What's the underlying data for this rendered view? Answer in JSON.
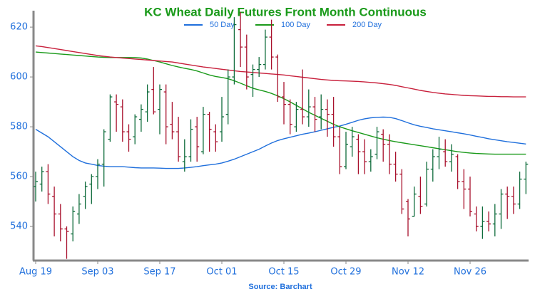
{
  "chart_data": {
    "type": "ohlc",
    "title": "KC Wheat Daily Futures Front Month Continuous",
    "source": "Source: Barchart",
    "categories": [
      "Aug 19",
      null,
      null,
      null,
      null,
      null,
      null,
      null,
      null,
      null,
      "Sep 03",
      null,
      null,
      null,
      null,
      null,
      null,
      null,
      null,
      null,
      "Sep 17",
      null,
      null,
      null,
      null,
      null,
      null,
      null,
      null,
      null,
      "Oct 01",
      null,
      null,
      null,
      null,
      null,
      null,
      null,
      null,
      null,
      "Oct 15",
      null,
      null,
      null,
      null,
      null,
      null,
      null,
      null,
      null,
      "Oct 29",
      null,
      null,
      null,
      null,
      null,
      null,
      null,
      null,
      null,
      "Nov 12",
      null,
      null,
      null,
      null,
      null,
      null,
      null,
      null,
      null,
      "Nov 26",
      null,
      null,
      null,
      null,
      null,
      null,
      null,
      null,
      null
    ],
    "open": [
      556,
      557,
      562,
      552,
      545,
      539,
      537,
      545,
      552,
      557,
      560,
      565,
      575,
      590,
      588,
      578,
      576,
      583,
      586,
      595,
      587,
      594,
      581,
      578,
      566,
      568,
      580,
      570,
      585,
      578,
      578,
      585,
      600,
      619,
      612,
      601,
      603,
      605,
      616,
      608,
      592,
      589,
      580,
      587,
      584,
      588,
      584,
      587,
      585,
      576,
      564,
      572,
      575,
      570,
      566,
      569,
      577,
      573,
      565,
      561,
      550,
      544,
      552,
      549,
      563,
      568,
      570,
      566,
      568,
      558,
      555,
      545,
      540,
      542,
      541,
      545,
      553,
      552,
      549,
      559
    ],
    "high": [
      562,
      564,
      565,
      556,
      549,
      540,
      548,
      553,
      558,
      561,
      567,
      579,
      593,
      593,
      591,
      581,
      585,
      589,
      597,
      604,
      597,
      597,
      590,
      584,
      575,
      583,
      584,
      588,
      586,
      581,
      592,
      603,
      624,
      626,
      617,
      605,
      608,
      619,
      623,
      609,
      598,
      591,
      590,
      603,
      595,
      592,
      593,
      591,
      592,
      580,
      578,
      580,
      577,
      575,
      571,
      580,
      579,
      577,
      570,
      563,
      551,
      556,
      560,
      566,
      571,
      576,
      575,
      573,
      569,
      563,
      560,
      548,
      548,
      546,
      549,
      555,
      556,
      556,
      562,
      566
    ],
    "low": [
      550,
      554,
      549,
      536,
      534,
      527,
      534,
      541,
      547,
      549,
      555,
      556,
      574,
      578,
      574,
      570,
      573,
      578,
      582,
      585,
      577,
      573,
      575,
      566,
      562,
      566,
      566,
      569,
      570,
      570,
      574,
      581,
      597,
      604,
      595,
      592,
      600,
      603,
      603,
      590,
      581,
      577,
      578,
      581,
      580,
      578,
      579,
      576,
      572,
      561,
      563,
      568,
      561,
      561,
      562,
      567,
      566,
      561,
      558,
      545,
      536,
      544,
      545,
      548,
      558,
      563,
      564,
      562,
      555,
      547,
      544,
      538,
      535,
      538,
      536,
      539,
      543,
      545,
      547,
      553
    ],
    "close": [
      558,
      562,
      553,
      545,
      539,
      538,
      546,
      549,
      556,
      560,
      565,
      578,
      592,
      589,
      578,
      575,
      584,
      587,
      594,
      586,
      595,
      580,
      578,
      568,
      568,
      579,
      572,
      585,
      579,
      574,
      584,
      600,
      621,
      612,
      600,
      603,
      605,
      616,
      608,
      592,
      589,
      581,
      587,
      584,
      588,
      583,
      587,
      585,
      576,
      564,
      573,
      576,
      570,
      566,
      568,
      578,
      573,
      565,
      561,
      547,
      543,
      553,
      548,
      563,
      568,
      571,
      566,
      569,
      558,
      555,
      546,
      540,
      542,
      541,
      545,
      553,
      552,
      549,
      559,
      565
    ],
    "up_color": "#0d6b3a",
    "down_color": "#a8102c",
    "series": [
      {
        "name": "50 Day",
        "color": "#1f6fdc",
        "values": [
          579,
          577.5,
          576,
          574,
          572,
          570,
          568,
          566.5,
          565.5,
          565,
          564.5,
          564.2,
          564,
          564,
          564,
          563.8,
          563.6,
          563.5,
          563.5,
          563.5,
          563.4,
          563.3,
          563.3,
          563.3,
          563.5,
          563.7,
          564,
          564.4,
          564.7,
          565,
          565.5,
          566.2,
          567,
          568,
          569,
          570,
          571,
          572.3,
          573.5,
          574.5,
          575.2,
          575.8,
          576.4,
          577,
          577.5,
          578,
          578.6,
          579.2,
          579.8,
          580.3,
          581,
          581.8,
          582.6,
          583.2,
          583.6,
          583.8,
          583.9,
          583.8,
          583.3,
          582.5,
          581.6,
          580.8,
          580.2,
          579.7,
          579.2,
          578.8,
          578.4,
          578,
          577.6,
          577.2,
          576.7,
          576.2,
          575.7,
          575.2,
          574.8,
          574.4,
          574,
          573.7,
          573.4,
          573.1
        ]
      },
      {
        "name": "100 Day",
        "color": "#1a9a1a",
        "values": [
          610,
          609.8,
          609.6,
          609.4,
          609.2,
          609,
          608.8,
          608.6,
          608.4,
          608.2,
          608,
          607.9,
          607.8,
          607.8,
          607.8,
          607.8,
          607.8,
          607.6,
          607.2,
          606.6,
          606,
          605.3,
          604.6,
          604,
          603.5,
          603,
          602.4,
          601.6,
          600.8,
          600.2,
          599.8,
          599.3,
          598.5,
          597.5,
          596.5,
          595.5,
          594.8,
          594.2,
          593.4,
          592.4,
          591.3,
          590,
          588.6,
          587.2,
          585.8,
          584.6,
          583.4,
          582.2,
          581,
          580,
          579.2,
          578.4,
          577.7,
          577,
          576.3,
          575.6,
          575,
          574.5,
          574,
          573.6,
          573.2,
          572.8,
          572.4,
          572,
          571.6,
          571.2,
          570.8,
          570.4,
          570,
          569.7,
          569.5,
          569.3,
          569.2,
          569.1,
          569,
          569,
          569,
          569,
          569,
          569
        ]
      },
      {
        "name": "200 Day",
        "color": "#c8203c",
        "values": [
          612.5,
          612.2,
          611.8,
          611.4,
          611,
          610.6,
          610.2,
          609.8,
          609.4,
          609,
          608.6,
          608.3,
          608,
          607.8,
          607.6,
          607.4,
          607.2,
          607,
          606.8,
          606.6,
          606.4,
          606.2,
          606,
          605.6,
          605.2,
          604.8,
          604.4,
          604,
          603.7,
          603.4,
          603.1,
          602.8,
          602.5,
          602.2,
          602,
          601.8,
          601.6,
          601.4,
          601.2,
          601,
          600.8,
          600.5,
          600.2,
          599.9,
          599.6,
          599.3,
          599,
          598.8,
          598.6,
          598.5,
          598.4,
          598.3,
          598.2,
          598,
          597.8,
          597.6,
          597.3,
          597,
          596.6,
          596.1,
          595.6,
          595.1,
          594.6,
          594.2,
          593.8,
          593.5,
          593.2,
          593,
          592.8,
          592.6,
          592.5,
          592.4,
          592.3,
          592.2,
          592.2,
          592.1,
          592.1,
          592,
          592,
          592
        ]
      }
    ],
    "ylim": [
      526.6,
      626.6
    ],
    "yticks": [
      540,
      560,
      580,
      600,
      620
    ]
  }
}
